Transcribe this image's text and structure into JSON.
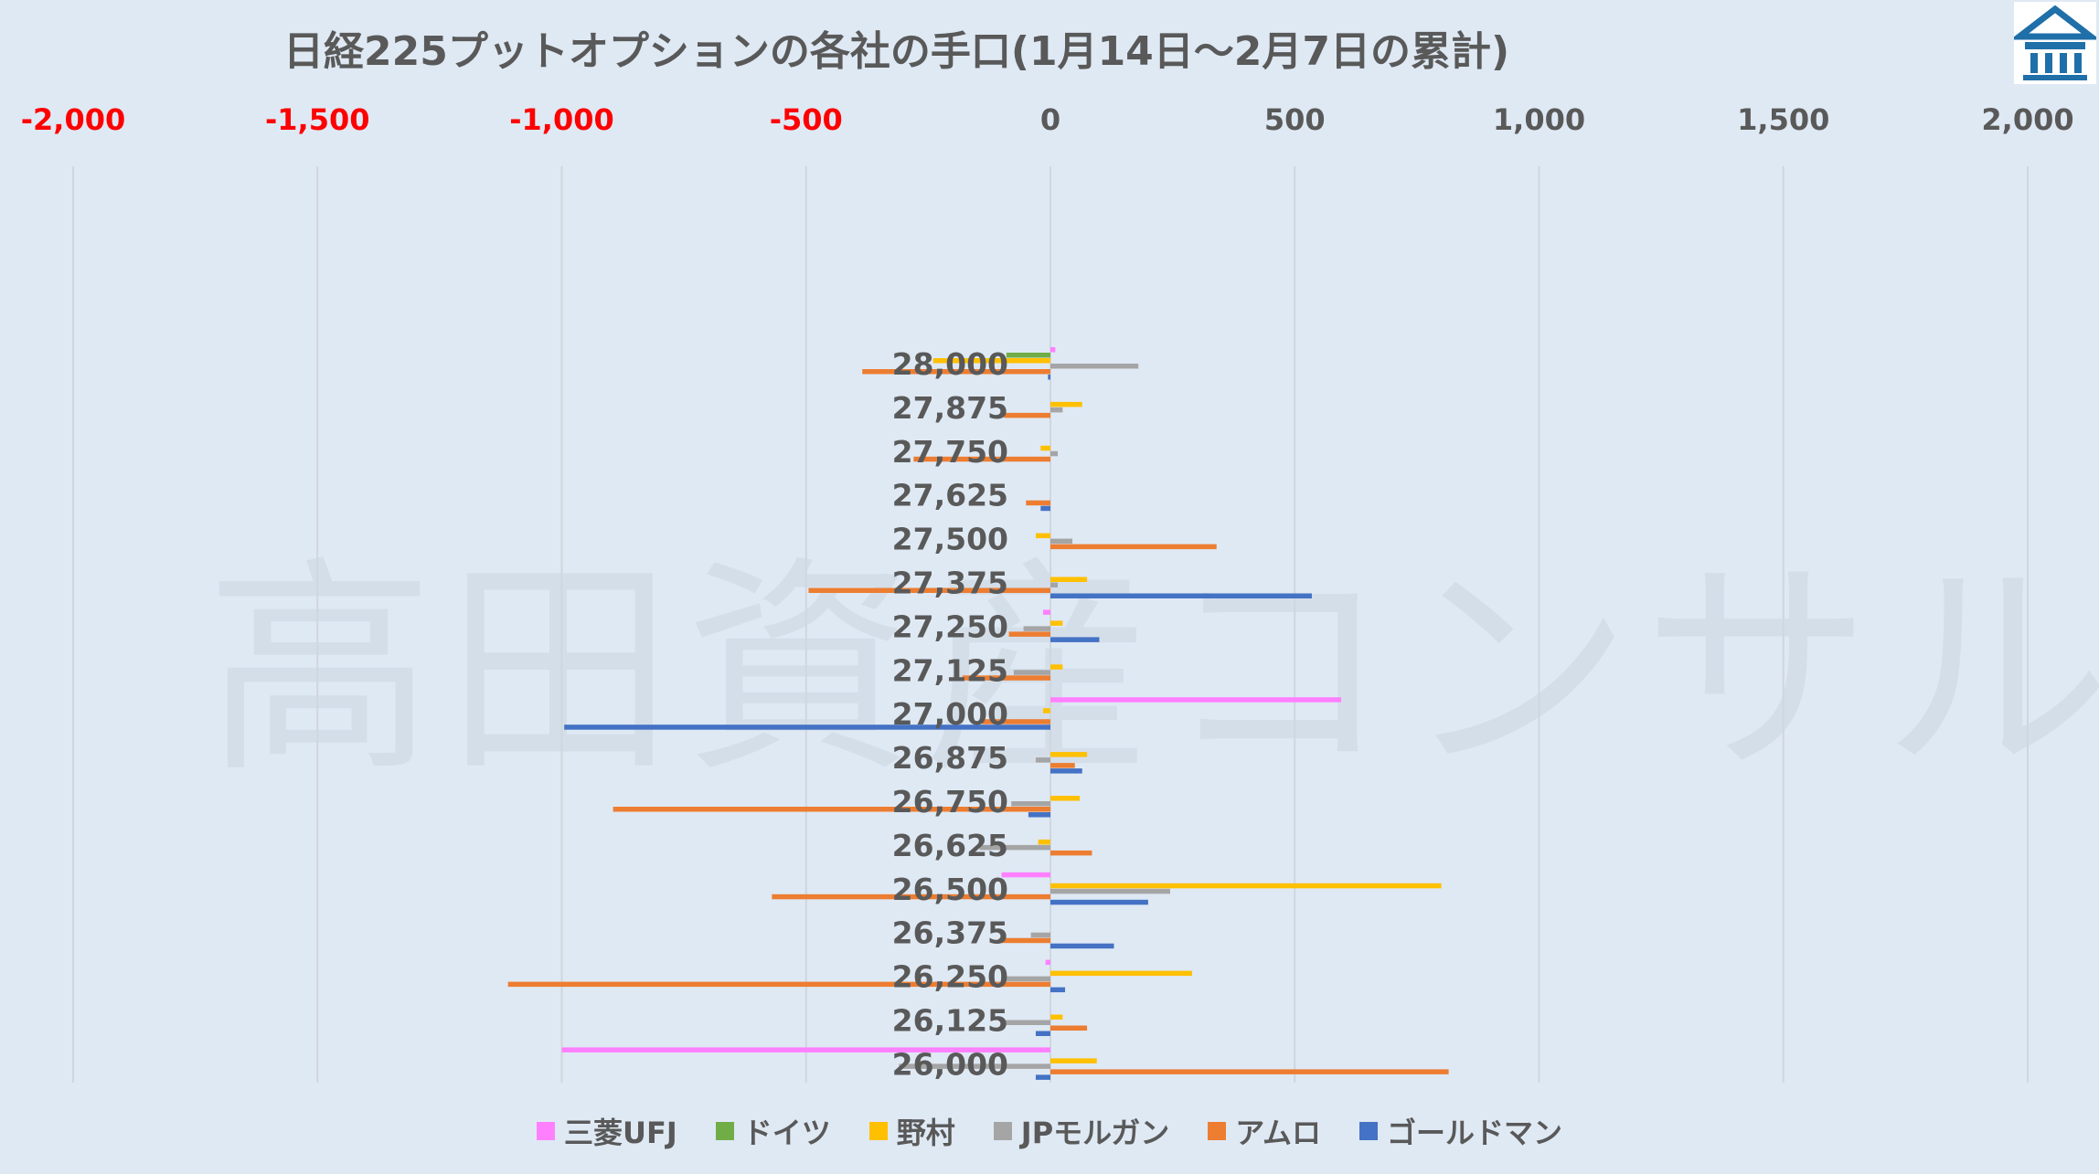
{
  "chart_data": {
    "type": "bar",
    "orientation": "horizontal",
    "title": "日経225プットオプションの各社の手口(1月14日～2月7日の累計)",
    "xlim": [
      -2000,
      2000
    ],
    "x_ticks": [
      "-2,000",
      "-1,500",
      "-1,000",
      "-500",
      "0",
      "500",
      "1,000",
      "1,500",
      "2,000"
    ],
    "x_tick_values": [
      -2000,
      -1500,
      -1000,
      -500,
      0,
      500,
      1000,
      1500,
      2000
    ],
    "negative_tick_color": "#ff0000",
    "grid": true,
    "legend_position": "bottom",
    "categories": [
      "28,000",
      "27,875",
      "27,750",
      "27,625",
      "27,500",
      "27,375",
      "27,250",
      "27,125",
      "27,000",
      "26,875",
      "26,750",
      "26,625",
      "26,500",
      "26,375",
      "26,250",
      "26,125",
      "26,000"
    ],
    "series": [
      {
        "name": "三菱UFJ",
        "color": "#ff80ff",
        "values": [
          10,
          0,
          0,
          0,
          0,
          0,
          -15,
          0,
          595,
          0,
          0,
          0,
          -100,
          0,
          -10,
          0,
          -1000
        ]
      },
      {
        "name": "ドイツ",
        "color": "#70ad47",
        "values": [
          -90,
          0,
          0,
          0,
          0,
          0,
          0,
          0,
          0,
          0,
          0,
          0,
          0,
          0,
          0,
          0,
          0
        ]
      },
      {
        "name": "野村",
        "color": "#ffc000",
        "values": [
          -240,
          65,
          -20,
          0,
          -30,
          75,
          25,
          25,
          -15,
          75,
          60,
          -25,
          800,
          0,
          290,
          25,
          95
        ]
      },
      {
        "name": "JPモルガン",
        "color": "#a5a5a5",
        "values": [
          180,
          25,
          15,
          0,
          45,
          15,
          -55,
          -75,
          0,
          -30,
          -80,
          -145,
          245,
          -40,
          -95,
          -95,
          -310
        ]
      },
      {
        "name": "アムロ",
        "color": "#ed7d31",
        "values": [
          -385,
          -95,
          -280,
          -50,
          340,
          -495,
          -85,
          -180,
          -140,
          50,
          -895,
          85,
          -570,
          -105,
          -1110,
          75,
          815
        ]
      },
      {
        "name": "ゴールドマン",
        "color": "#4472c4",
        "values": [
          -5,
          0,
          0,
          -20,
          0,
          535,
          100,
          0,
          -995,
          65,
          -45,
          0,
          200,
          130,
          30,
          -30,
          -30
        ]
      }
    ]
  },
  "watermark": "高田資産コンサル",
  "logo": {
    "icon": "building-icon",
    "color": "#1f6fa8"
  }
}
